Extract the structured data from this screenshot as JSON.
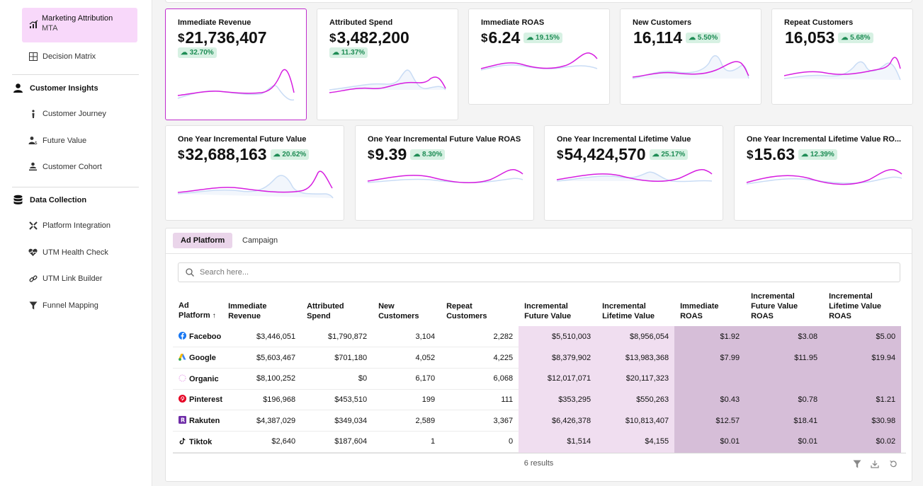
{
  "sidebar": {
    "active_item": {
      "label": "Marketing Attribution",
      "sublabel": "MTA"
    },
    "decision_matrix": "Decision Matrix",
    "customer_insights": {
      "title": "Customer Insights",
      "items": [
        "Customer Journey",
        "Future Value",
        "Customer Cohort"
      ]
    },
    "data_collection": {
      "title": "Data Collection",
      "items": [
        "Platform Integration",
        "UTM Health Check",
        "UTM Link Builder",
        "Funnel Mapping"
      ]
    }
  },
  "kpi_cards": [
    {
      "title": "Immediate Revenue",
      "currency": "$",
      "value": "21,736,407",
      "change": "32.70%"
    },
    {
      "title": "Attributed Spend",
      "currency": "$",
      "value": "3,482,200",
      "change": "11.37%"
    },
    {
      "title": "Immediate ROAS",
      "currency": "$",
      "value": "6.24",
      "change": "19.15%"
    },
    {
      "title": "New Customers",
      "currency": "",
      "value": "16,114",
      "change": "5.50%"
    },
    {
      "title": "Repeat Customers",
      "currency": "",
      "value": "16,053",
      "change": "5.68%"
    },
    {
      "title": "One Year Incremental Future Value",
      "currency": "$",
      "value": "32,688,163",
      "change": "20.62%"
    },
    {
      "title": "One Year Incremental Future Value ROAS",
      "currency": "$",
      "value": "9.39",
      "change": "8.30%"
    },
    {
      "title": "One Year Incremental Lifetime Value",
      "currency": "$",
      "value": "54,424,570",
      "change": "25.17%"
    },
    {
      "title": "One Year Incremental Lifetime Value RO...",
      "currency": "$",
      "value": "15.63",
      "change": "12.39%"
    }
  ],
  "tabs": [
    "Ad Platform",
    "Campaign"
  ],
  "search": {
    "placeholder": "Search here..."
  },
  "table": {
    "headers": [
      "Ad Platform",
      "Immediate Revenue",
      "Attributed Spend",
      "New Customers",
      "Repeat Customers",
      "Incremental Future Value",
      "Incremental Lifetime Value",
      "Immediate ROAS",
      "Incremental Future Value ROAS",
      "Incremental Lifetime Value ROAS"
    ],
    "sort_indicator": "↑",
    "rows": [
      {
        "platform": "Faceboo",
        "icon": "facebook-icon",
        "cells": [
          "$3,446,051",
          "$1,790,872",
          "3,104",
          "2,282",
          "$5,510,003",
          "$8,956,054",
          "$1.92",
          "$3.08",
          "$5.00"
        ]
      },
      {
        "platform": "Google",
        "icon": "google-ads-icon",
        "cells": [
          "$5,603,467",
          "$701,180",
          "4,052",
          "4,225",
          "$8,379,902",
          "$13,983,368",
          "$7.99",
          "$11.95",
          "$19.94"
        ]
      },
      {
        "platform": "Organic",
        "icon": "organic-icon",
        "cells": [
          "$8,100,252",
          "$0",
          "6,170",
          "6,068",
          "$12,017,071",
          "$20,117,323",
          "",
          "",
          ""
        ]
      },
      {
        "platform": "Pinterest",
        "icon": "pinterest-icon",
        "cells": [
          "$196,968",
          "$453,510",
          "199",
          "111",
          "$353,295",
          "$550,263",
          "$0.43",
          "$0.78",
          "$1.21"
        ]
      },
      {
        "platform": "Rakuten",
        "icon": "rakuten-icon",
        "cells": [
          "$4,387,029",
          "$349,034",
          "2,589",
          "3,367",
          "$6,426,378",
          "$10,813,407",
          "$12.57",
          "$18.41",
          "$30.98"
        ]
      },
      {
        "platform": "Tiktok",
        "icon": "tiktok-icon",
        "cells": [
          "$2,640",
          "$187,604",
          "1",
          "0",
          "$1,514",
          "$4,155",
          "$0.01",
          "$0.01",
          "$0.02"
        ]
      }
    ],
    "results_text": "6 results"
  },
  "colors": {
    "accent": "#c02ccd",
    "active_bg": "#f8d8fa",
    "positive_bg": "#d7f1e3",
    "positive_text": "#1d8c54",
    "spark_primary": "#d61ee0",
    "spark_secondary": "#c9dcf5"
  }
}
